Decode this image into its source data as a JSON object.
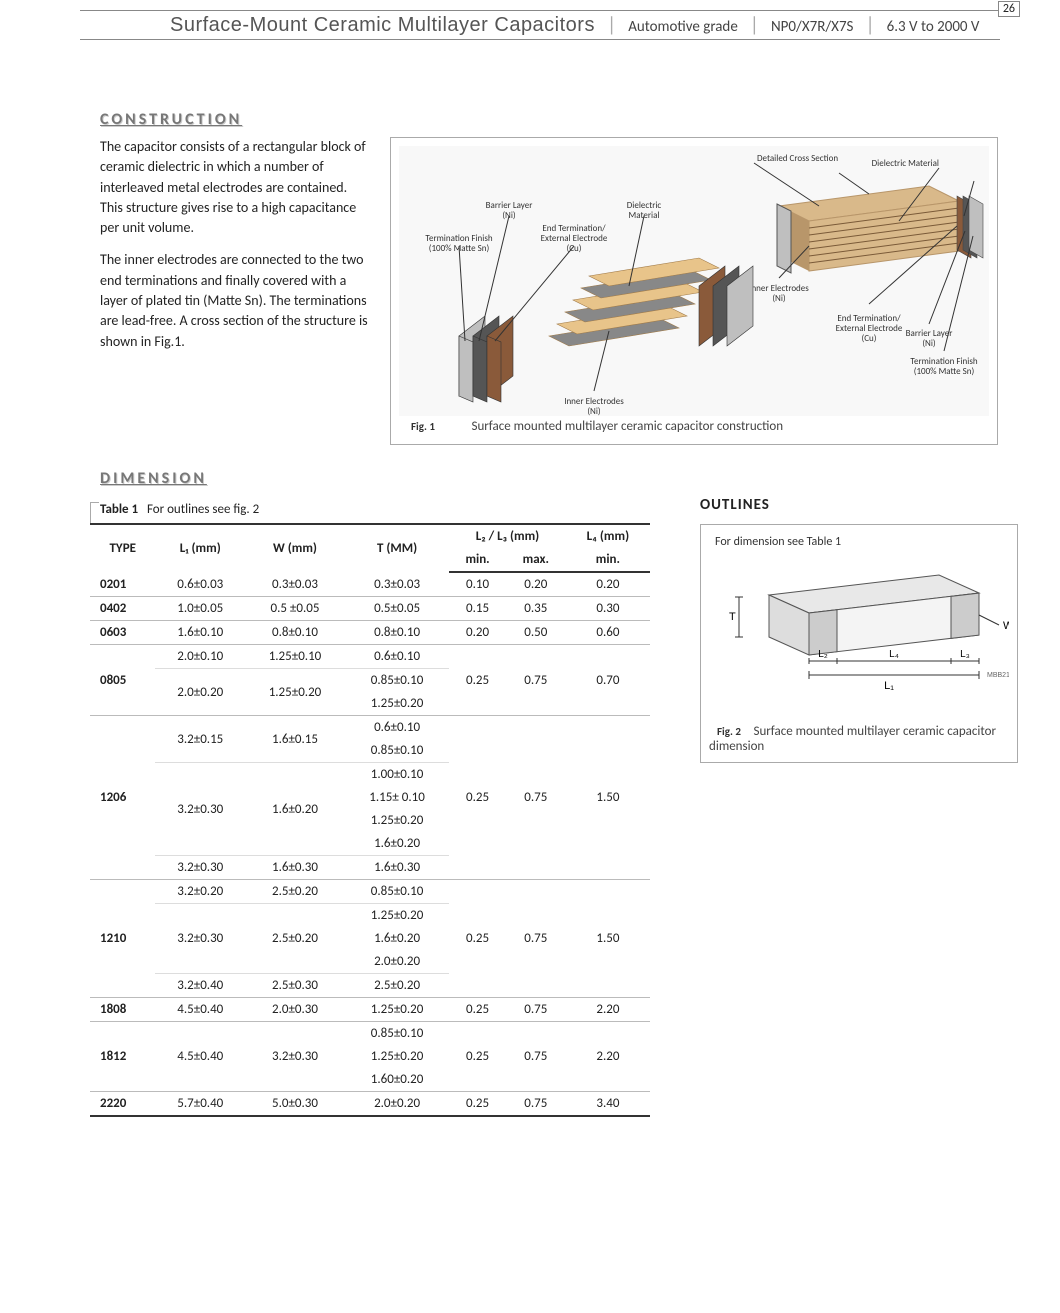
{
  "header": {
    "title": "Surface-Mount Ceramic Multilayer Capacitors",
    "subtitle1": "Automotive grade",
    "subtitle2": "NP0/X7R/X7S",
    "subtitle3": "6.3 V to 2000 V",
    "page": "26"
  },
  "construction": {
    "heading": "CONSTRUCTION",
    "p1": "The capacitor consists of a rectangular block of ceramic dielectric in which a number of interleaved metal electrodes are contained. This structure gives rise to a high capacitance per unit volume.",
    "p2": "The inner electrodes are connected to the two end terminations and finally covered with a layer of plated tin (Matte Sn). The terminations are lead-free. A cross section of the structure is shown in Fig.1."
  },
  "fig1": {
    "label": "Fig. 1",
    "caption": "Surface mounted multilayer ceramic capacitor construction",
    "labels": {
      "barrier": "Barrier Layer\n(Ni)",
      "termfin": "Termination Finish\n(100% Matte Sn)",
      "endterm": "End Termination/\nExternal Electrode\n(Cu)",
      "dielectric": "Dielectric\nMaterial",
      "inner": "Inner Electrodes\n(Ni)",
      "dcs": "Detailed Cross Section",
      "dielmat": "Dielectric Material"
    },
    "colors": {
      "body": "#d9b98a",
      "body_dark": "#b8966a",
      "term_outer": "#bfbfbf",
      "term_mid": "#555555",
      "term_inner": "#8a5a3a",
      "plate": "#e8c48a",
      "plate_edge": "#a07a48",
      "bg": "#f8f8f8"
    }
  },
  "dimension": {
    "heading": "DIMENSION",
    "tablecap_label": "Table 1",
    "tablecap_text": "For outlines see fig. 2",
    "headers": {
      "type": "TYPE",
      "l1": "L₁ (mm)",
      "w": "W (mm)",
      "t": "T (MM)",
      "l23": "L₂ / L₃ (mm)",
      "l4": "L₄ (mm)",
      "min": "min.",
      "max": "max."
    }
  },
  "outlines": {
    "heading": "OUTLINES",
    "note": "For dimension see Table 1",
    "fig2label": "Fig. 2",
    "fig2cap": "Surface mounted multilayer ceramic capacitor dimension",
    "marks": {
      "T": "T",
      "W": "W",
      "L1": "L₁",
      "L2": "L₂",
      "L3": "L₃",
      "L4": "L₄",
      "code": "MBB211"
    }
  },
  "table": [
    {
      "type": "0201",
      "rows": [
        {
          "l1": "0.6±0.03",
          "w": "0.3±0.03",
          "t": [
            "0.3±0.03"
          ]
        }
      ],
      "l23min": "0.10",
      "l23max": "0.20",
      "l4min": "0.20"
    },
    {
      "type": "0402",
      "rows": [
        {
          "l1": "1.0±0.05",
          "w": "0.5 ±0.05",
          "t": [
            "0.5±0.05"
          ]
        }
      ],
      "l23min": "0.15",
      "l23max": "0.35",
      "l4min": "0.30"
    },
    {
      "type": "0603",
      "rows": [
        {
          "l1": "1.6±0.10",
          "w": "0.8±0.10",
          "t": [
            "0.8±0.10"
          ]
        }
      ],
      "l23min": "0.20",
      "l23max": "0.50",
      "l4min": "0.60"
    },
    {
      "type": "0805",
      "rows": [
        {
          "l1": "2.0±0.10",
          "w": "1.25±0.10",
          "t": [
            "0.6±0.10"
          ]
        },
        {
          "l1": "2.0±0.20",
          "w": "1.25±0.20",
          "t": [
            "0.85±0.10",
            "1.25±0.20"
          ]
        }
      ],
      "l23min": "0.25",
      "l23max": "0.75",
      "l4min": "0.70"
    },
    {
      "type": "1206",
      "rows": [
        {
          "l1": "3.2±0.15",
          "w": "1.6±0.15",
          "t": [
            "0.6±0.10",
            "0.85±0.10"
          ]
        },
        {
          "l1": "3.2±0.30",
          "w": "1.6±0.20",
          "t": [
            "1.00±0.10",
            "1.15± 0.10",
            "1.25±0.20",
            "1.6±0.20"
          ]
        },
        {
          "l1": "3.2±0.30",
          "w": "1.6±0.30",
          "t": [
            "1.6±0.30"
          ]
        }
      ],
      "l23min": "0.25",
      "l23max": "0.75",
      "l4min": "1.50"
    },
    {
      "type": "1210",
      "rows": [
        {
          "l1": "3.2±0.20",
          "w": "2.5±0.20",
          "t": [
            "0.85±0.10"
          ]
        },
        {
          "l1": "3.2±0.30",
          "w": "2.5±0.20",
          "t": [
            "1.25±0.20",
            "1.6±0.20",
            "2.0±0.20"
          ]
        },
        {
          "l1": "3.2±0.40",
          "w": "2.5±0.30",
          "t": [
            "2.5±0.20"
          ]
        }
      ],
      "l23min": "0.25",
      "l23max": "0.75",
      "l4min": "1.50"
    },
    {
      "type": "1808",
      "rows": [
        {
          "l1": "4.5±0.40",
          "w": "2.0±0.30",
          "t": [
            "1.25±0.20"
          ]
        }
      ],
      "l23min": "0.25",
      "l23max": "0.75",
      "l4min": "2.20"
    },
    {
      "type": "1812",
      "rows": [
        {
          "l1": "4.5±0.40",
          "w": "3.2±0.30",
          "t": [
            "0.85±0.10",
            "1.25±0.20",
            "1.60±0.20"
          ]
        }
      ],
      "l23min": "0.25",
      "l23max": "0.75",
      "l4min": "2.20"
    },
    {
      "type": "2220",
      "rows": [
        {
          "l1": "5.7±0.40",
          "w": "5.0±0.30",
          "t": [
            "2.0±0.20"
          ]
        }
      ],
      "l23min": "0.25",
      "l23max": "0.75",
      "l4min": "3.40"
    }
  ]
}
